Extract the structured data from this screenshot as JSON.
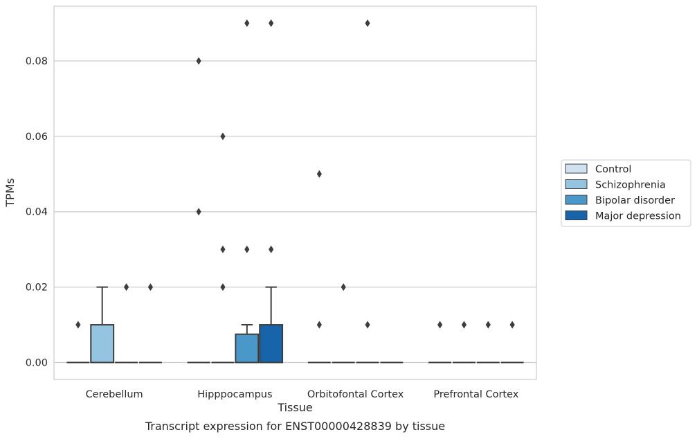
{
  "chart_data": {
    "type": "box",
    "title": "",
    "caption": "Transcript expression for ENST00000428839 by tissue",
    "xlabel": "Tissue",
    "ylabel": "TPMs",
    "ylim": [
      -0.0045,
      0.0945
    ],
    "yticks": [
      0.0,
      0.02,
      0.04,
      0.06,
      0.08
    ],
    "ytick_labels": [
      "0.00",
      "0.02",
      "0.04",
      "0.06",
      "0.08"
    ],
    "grid": "horizontal",
    "legend_position": "right",
    "categories": [
      "Cerebellum",
      "Hipppocampus",
      "Orbitofontal Cortex",
      "Prefrontal Cortex"
    ],
    "series": [
      {
        "name": "Control",
        "color": "#d0e1f2",
        "boxes": [
          {
            "q1": 0,
            "median": 0,
            "q3": 0,
            "whislo": 0,
            "whishi": 0,
            "fliers": [
              0.01
            ]
          },
          {
            "q1": 0,
            "median": 0,
            "q3": 0,
            "whislo": 0,
            "whishi": 0,
            "fliers": [
              0.04,
              0.08
            ]
          },
          {
            "q1": 0,
            "median": 0,
            "q3": 0,
            "whislo": 0,
            "whishi": 0,
            "fliers": [
              0.01,
              0.05
            ]
          },
          {
            "q1": 0,
            "median": 0,
            "q3": 0,
            "whislo": 0,
            "whishi": 0,
            "fliers": [
              0.01
            ]
          }
        ]
      },
      {
        "name": "Schizophrenia",
        "color": "#94c4df",
        "boxes": [
          {
            "q1": 0,
            "median": 0,
            "q3": 0.01,
            "whislo": 0,
            "whishi": 0.02,
            "fliers": []
          },
          {
            "q1": 0,
            "median": 0,
            "q3": 0,
            "whislo": 0,
            "whishi": 0,
            "fliers": [
              0.02,
              0.03,
              0.06
            ]
          },
          {
            "q1": 0,
            "median": 0,
            "q3": 0,
            "whislo": 0,
            "whishi": 0,
            "fliers": [
              0.02
            ]
          },
          {
            "q1": 0,
            "median": 0,
            "q3": 0,
            "whislo": 0,
            "whishi": 0,
            "fliers": [
              0.01
            ]
          }
        ]
      },
      {
        "name": "Bipolar disorder",
        "color": "#4a98c9",
        "boxes": [
          {
            "q1": 0,
            "median": 0,
            "q3": 0,
            "whislo": 0,
            "whishi": 0,
            "fliers": [
              0.02
            ]
          },
          {
            "q1": 0,
            "median": 0,
            "q3": 0.0075,
            "whislo": 0,
            "whishi": 0.01,
            "fliers": [
              0.03,
              0.09
            ]
          },
          {
            "q1": 0,
            "median": 0,
            "q3": 0,
            "whislo": 0,
            "whishi": 0,
            "fliers": [
              0.01,
              0.09
            ]
          },
          {
            "q1": 0,
            "median": 0,
            "q3": 0,
            "whislo": 0,
            "whishi": 0,
            "fliers": [
              0.01
            ]
          }
        ]
      },
      {
        "name": "Major depression",
        "color": "#1764ab",
        "boxes": [
          {
            "q1": 0,
            "median": 0,
            "q3": 0,
            "whislo": 0,
            "whishi": 0,
            "fliers": [
              0.02
            ]
          },
          {
            "q1": 0,
            "median": 0,
            "q3": 0.01,
            "whislo": 0,
            "whishi": 0.02,
            "fliers": [
              0.03,
              0.09
            ]
          },
          {
            "q1": 0,
            "median": 0,
            "q3": 0,
            "whislo": 0,
            "whishi": 0,
            "fliers": []
          },
          {
            "q1": 0,
            "median": 0,
            "q3": 0,
            "whislo": 0,
            "whishi": 0,
            "fliers": [
              0.01
            ]
          }
        ]
      }
    ]
  }
}
